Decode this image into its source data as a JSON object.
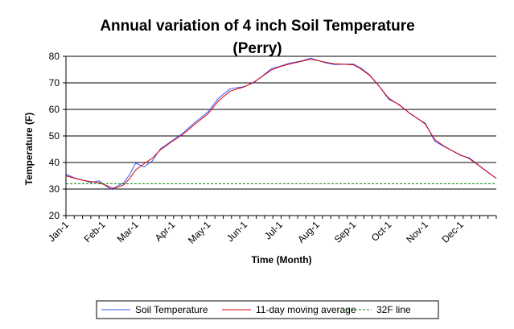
{
  "chart_data": {
    "type": "line",
    "title_line1": "Annual variation of 4 inch Soil Temperature",
    "title_line2": "(Perry)",
    "xlabel": "Time (Month)",
    "ylabel": "Temperature (F)",
    "ylim": [
      20,
      80
    ],
    "yticks": [
      20,
      30,
      40,
      50,
      60,
      70,
      80
    ],
    "xlim": [
      1,
      365
    ],
    "categories": [
      "Jan-1",
      "Feb-1",
      "Mar-1",
      "Apr-1",
      "May-1",
      "Jun-1",
      "Jul-1",
      "Aug-1",
      "Sep-1",
      "Oct-1",
      "Nov-1",
      "Dec-1"
    ],
    "category_day": [
      1,
      32,
      60,
      91,
      121,
      152,
      182,
      213,
      244,
      274,
      305,
      335
    ],
    "grid": "horizontal",
    "legend_position": "bottom",
    "series": [
      {
        "name": "Soil Temperature",
        "color": "#3355ff",
        "style": "solid",
        "x": [
          1,
          8,
          15,
          22,
          29,
          36,
          40,
          44,
          50,
          55,
          60,
          67,
          74,
          81,
          91,
          100,
          110,
          121,
          130,
          140,
          152,
          160,
          168,
          175,
          182,
          190,
          200,
          208,
          213,
          220,
          228,
          236,
          244,
          250,
          258,
          266,
          274,
          283,
          292,
          300,
          305,
          313,
          320,
          327,
          335,
          342,
          350,
          358,
          365
        ],
        "y": [
          35.6,
          34.2,
          33.4,
          32.5,
          33.1,
          30.8,
          29.8,
          31.0,
          32.4,
          35.5,
          39.8,
          38.3,
          40.6,
          45.2,
          48.3,
          51.1,
          55.1,
          59.0,
          64.2,
          67.8,
          68.6,
          70.1,
          72.9,
          75.4,
          76.2,
          77.4,
          78.2,
          79.3,
          78.6,
          77.6,
          76.9,
          77.0,
          77.1,
          75.7,
          73.0,
          68.7,
          63.8,
          61.8,
          58.4,
          56.1,
          54.8,
          48.0,
          46.2,
          44.6,
          42.6,
          41.8,
          39.0,
          36.3,
          34.0
        ]
      },
      {
        "name": "11-day moving average",
        "color": "#dd0000",
        "style": "solid",
        "x": [
          1,
          8,
          15,
          22,
          29,
          36,
          40,
          44,
          50,
          55,
          60,
          67,
          74,
          81,
          91,
          100,
          110,
          121,
          130,
          140,
          152,
          160,
          168,
          175,
          182,
          190,
          200,
          208,
          213,
          220,
          228,
          236,
          244,
          250,
          258,
          266,
          274,
          283,
          292,
          300,
          305,
          313,
          320,
          327,
          335,
          342,
          350,
          358,
          365
        ],
        "y": [
          35.0,
          34.1,
          33.3,
          32.8,
          32.4,
          31.2,
          30.3,
          30.5,
          31.6,
          34.0,
          37.2,
          39.5,
          41.6,
          44.8,
          48.0,
          50.6,
          54.4,
          58.3,
          63.2,
          66.9,
          68.5,
          70.3,
          72.8,
          74.9,
          76.1,
          77.1,
          78.1,
          78.9,
          78.5,
          77.8,
          77.2,
          77.0,
          76.8,
          75.4,
          72.8,
          68.6,
          64.2,
          61.6,
          58.5,
          56.1,
          54.4,
          48.6,
          46.4,
          44.6,
          42.8,
          41.5,
          38.9,
          36.2,
          34.1
        ]
      },
      {
        "name": "32F line",
        "color": "#008000",
        "style": "dashed",
        "x": [
          1,
          365
        ],
        "y": [
          32,
          32
        ]
      }
    ]
  }
}
